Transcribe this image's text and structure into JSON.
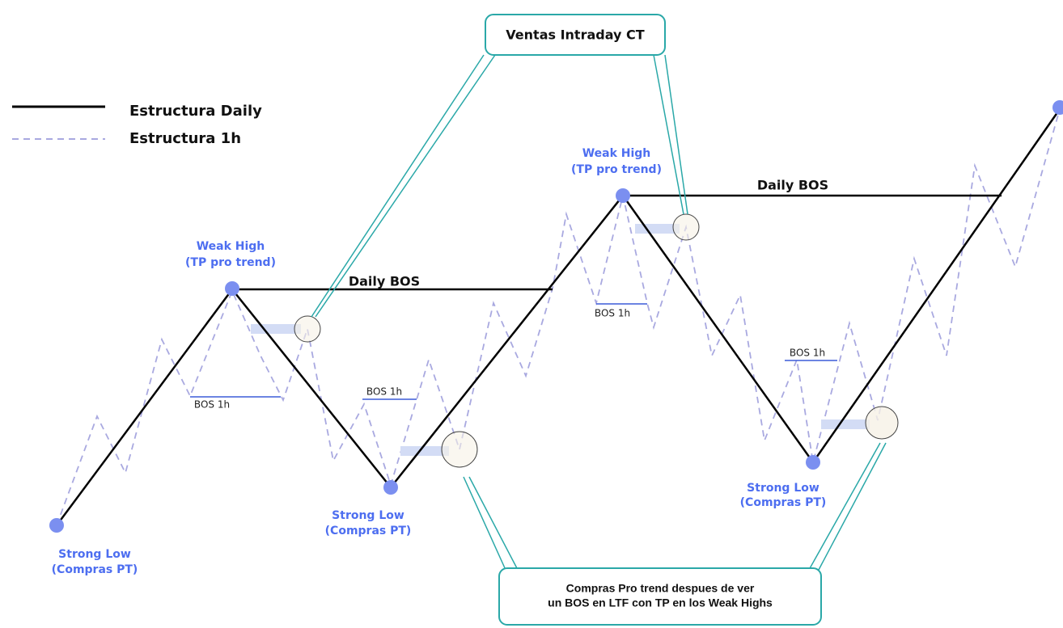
{
  "legend": {
    "daily": "Estructura Daily",
    "hourly": "Estructura 1h"
  },
  "callout_top": "Ventas Intraday CT",
  "callout_bottom": [
    "Compras Pro trend despues de ver",
    "un BOS en LTF con TP en los Weak Highs"
  ],
  "weak_highs": [
    {
      "title": "Weak High",
      "note": "(TP pro trend)"
    },
    {
      "title": "Weak High",
      "note": "(TP pro trend)"
    }
  ],
  "strong_lows": [
    {
      "title": "Strong Low",
      "note": "(Compras PT)"
    },
    {
      "title": "Strong Low",
      "note": "(Compras PT)"
    },
    {
      "title": "Strong Low",
      "note": "(Compras PT)"
    }
  ],
  "daily_bos": [
    "Daily BOS",
    "Daily BOS"
  ],
  "bos_1h": [
    "BOS 1h",
    "BOS 1h",
    "BOS 1h",
    "BOS 1h"
  ]
}
